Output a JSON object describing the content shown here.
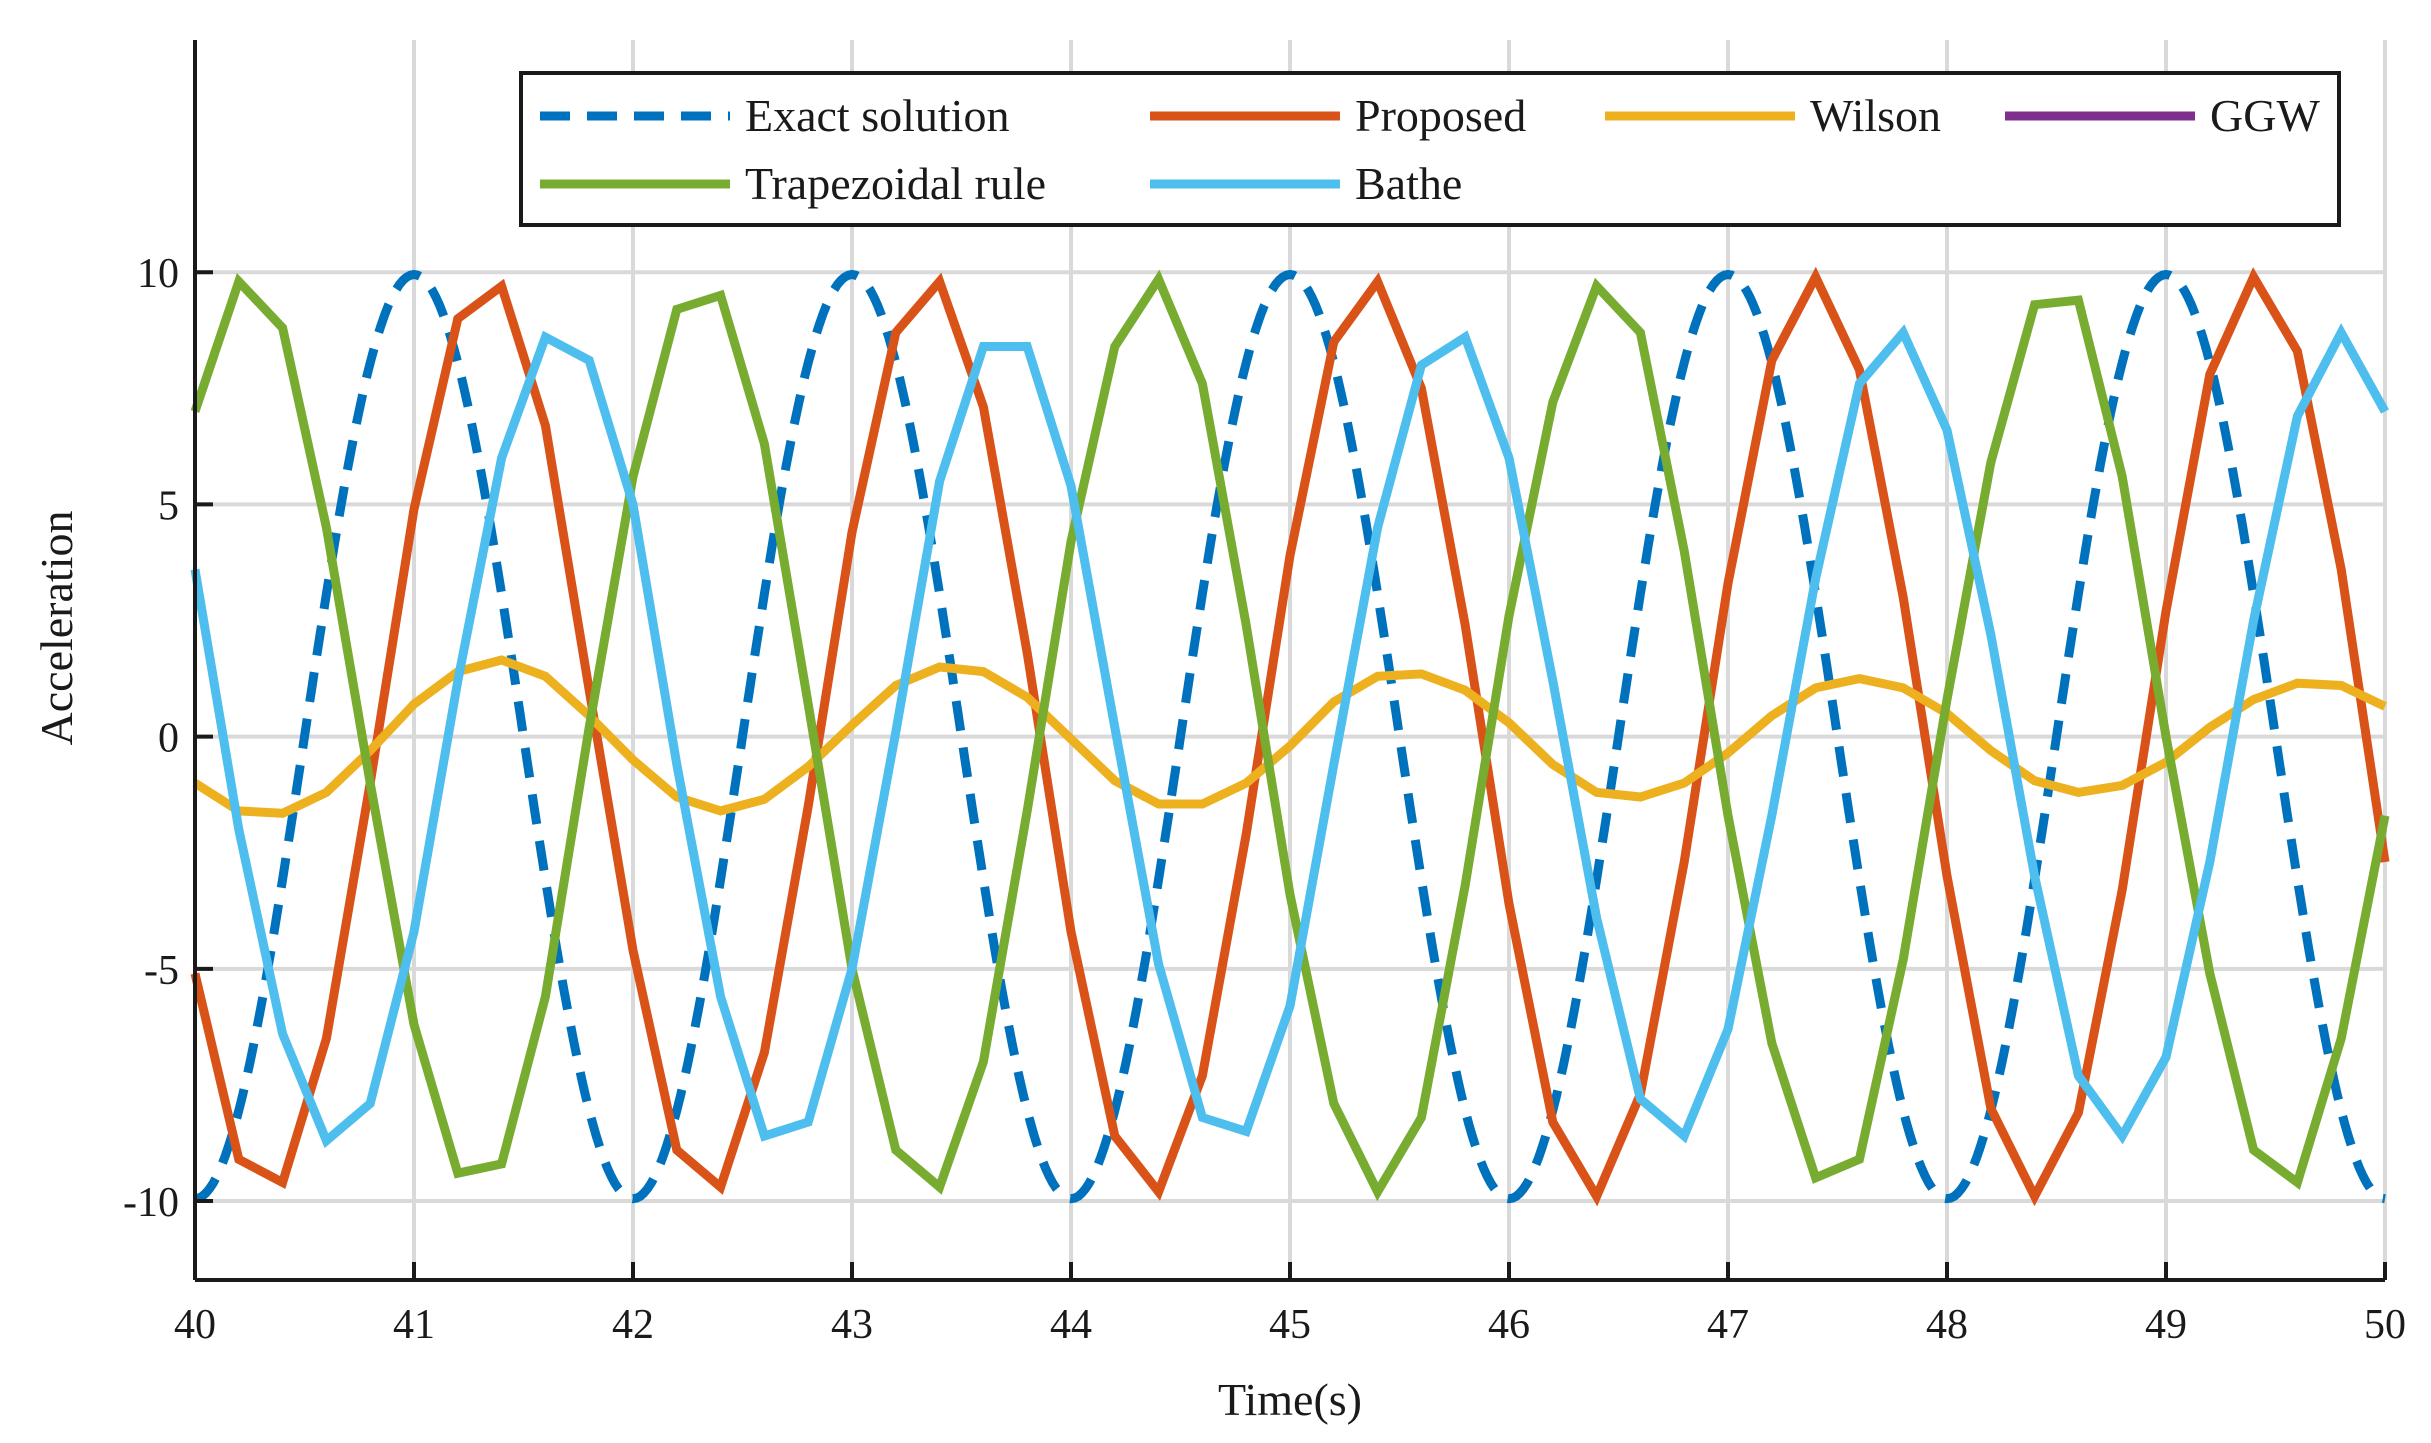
{
  "chart_data": {
    "type": "line",
    "title": "",
    "xlabel": "Time(s)",
    "ylabel": "Acceleration",
    "xlim": [
      40,
      50
    ],
    "ylim": [
      -11.7,
      15
    ],
    "grid": true,
    "legend_position": "top-right",
    "x_ticks": [
      40,
      41,
      42,
      43,
      44,
      45,
      46,
      47,
      48,
      49,
      50
    ],
    "x_tick_labels": [
      "40",
      "41",
      "42",
      "43",
      "44",
      "45",
      "46",
      "47",
      "48",
      "49",
      "50"
    ],
    "y_ticks": [
      -10,
      -5,
      0,
      5,
      10
    ],
    "y_tick_labels": [
      "-10",
      "-5",
      "0",
      "5",
      "10"
    ],
    "series": [
      {
        "name": "Exact solution",
        "style": "dashed",
        "color": "#0072BD",
        "model": {
          "amplitude": 9.95,
          "period": 2.0,
          "phase": -1.5708,
          "decay": 0
        }
      },
      {
        "name": "Proposed",
        "style": "solid",
        "color": "#D95319",
        "x": [
          40.0,
          40.2,
          40.4,
          40.6,
          40.8,
          41.0,
          41.2,
          41.4,
          41.6,
          41.8,
          42.0,
          42.2,
          42.4,
          42.6,
          42.8,
          43.0,
          43.2,
          43.4,
          43.6,
          43.8,
          44.0,
          44.2,
          44.4,
          44.6,
          44.8,
          45.0,
          45.2,
          45.4,
          45.6,
          45.8,
          46.0,
          46.2,
          46.4,
          46.6,
          46.8,
          47.0,
          47.2,
          47.4,
          47.6,
          47.8,
          48.0,
          48.2,
          48.4,
          48.6,
          48.8,
          49.0,
          49.2,
          49.4,
          49.6,
          49.8,
          50.0
        ],
        "values": [
          -5.1,
          -9.1,
          -9.6,
          -6.5,
          -1.0,
          4.9,
          9.0,
          9.7,
          6.7,
          1.0,
          -4.6,
          -8.9,
          -9.7,
          -6.8,
          -1.5,
          4.4,
          8.7,
          9.8,
          7.1,
          1.8,
          -4.2,
          -8.6,
          -9.8,
          -7.3,
          -2.1,
          3.9,
          8.5,
          9.8,
          7.5,
          2.4,
          -3.6,
          -8.3,
          -9.9,
          -7.7,
          -2.7,
          3.3,
          8.1,
          9.9,
          7.9,
          3.0,
          -3.0,
          -8.0,
          -9.9,
          -8.1,
          -3.3,
          2.7,
          7.8,
          9.9,
          8.3,
          3.6,
          -2.7
        ]
      },
      {
        "name": "Wilson",
        "style": "solid",
        "color": "#EDB120",
        "x": [
          40.0,
          40.2,
          40.4,
          40.6,
          40.8,
          41.0,
          41.2,
          41.4,
          41.6,
          41.8,
          42.0,
          42.2,
          42.4,
          42.6,
          42.8,
          43.0,
          43.2,
          43.4,
          43.6,
          43.8,
          44.0,
          44.2,
          44.4,
          44.6,
          44.8,
          45.0,
          45.2,
          45.4,
          45.6,
          45.8,
          46.0,
          46.2,
          46.4,
          46.6,
          46.8,
          47.0,
          47.2,
          47.4,
          47.6,
          47.8,
          48.0,
          48.2,
          48.4,
          48.6,
          48.8,
          49.0,
          49.2,
          49.4,
          49.6,
          49.8,
          50.0
        ],
        "values": [
          -1.0,
          -1.6,
          -1.65,
          -1.2,
          -0.3,
          0.7,
          1.4,
          1.65,
          1.3,
          0.45,
          -0.5,
          -1.3,
          -1.6,
          -1.35,
          -0.65,
          0.25,
          1.1,
          1.5,
          1.4,
          0.85,
          -0.05,
          -0.95,
          -1.45,
          -1.45,
          -1.0,
          -0.2,
          0.75,
          1.3,
          1.35,
          1.0,
          0.3,
          -0.6,
          -1.2,
          -1.3,
          -1.0,
          -0.35,
          0.45,
          1.05,
          1.25,
          1.05,
          0.5,
          -0.3,
          -0.95,
          -1.2,
          -1.05,
          -0.55,
          0.2,
          0.8,
          1.15,
          1.1,
          0.65
        ]
      },
      {
        "name": "GGW",
        "style": "solid",
        "color": "#7E2F8E",
        "x": [],
        "values": []
      },
      {
        "name": "Trapezoidal rule",
        "style": "solid",
        "color": "#77AC30",
        "x": [
          40.0,
          40.2,
          40.4,
          40.6,
          40.8,
          41.0,
          41.2,
          41.4,
          41.6,
          41.8,
          42.0,
          42.2,
          42.4,
          42.6,
          42.8,
          43.0,
          43.2,
          43.4,
          43.6,
          43.8,
          44.0,
          44.2,
          44.4,
          44.6,
          44.8,
          45.0,
          45.2,
          45.4,
          45.6,
          45.8,
          46.0,
          46.2,
          46.4,
          46.6,
          46.8,
          47.0,
          47.2,
          47.4,
          47.6,
          47.8,
          48.0,
          48.2,
          48.4,
          48.6,
          48.8,
          49.0,
          49.2,
          49.4,
          49.6,
          49.8,
          50.0
        ],
        "values": [
          7.0,
          9.8,
          8.8,
          4.5,
          -1.0,
          -6.2,
          -9.4,
          -9.2,
          -5.6,
          0.2,
          5.6,
          9.2,
          9.5,
          6.3,
          0.7,
          -5.0,
          -8.9,
          -9.7,
          -7.0,
          -1.6,
          4.2,
          8.4,
          9.85,
          7.6,
          2.4,
          -3.4,
          -7.9,
          -9.8,
          -8.2,
          -3.2,
          2.6,
          7.2,
          9.7,
          8.7,
          4.0,
          -1.7,
          -6.6,
          -9.5,
          -9.1,
          -4.8,
          0.8,
          5.9,
          9.3,
          9.4,
          5.6,
          0.0,
          -5.1,
          -8.9,
          -9.6,
          -6.5,
          -1.7
        ]
      },
      {
        "name": "Bathe",
        "style": "solid",
        "color": "#4DBEEE",
        "x": [
          40.0,
          40.2,
          40.4,
          40.6,
          40.8,
          41.0,
          41.2,
          41.4,
          41.6,
          41.8,
          42.0,
          42.2,
          42.4,
          42.6,
          42.8,
          43.0,
          43.2,
          43.4,
          43.6,
          43.8,
          44.0,
          44.2,
          44.4,
          44.6,
          44.8,
          45.0,
          45.2,
          45.4,
          45.6,
          45.8,
          46.0,
          46.2,
          46.4,
          46.6,
          46.8,
          47.0,
          47.2,
          47.4,
          47.6,
          47.8,
          48.0,
          48.2,
          48.4,
          48.6,
          48.8,
          49.0,
          49.2,
          49.4,
          49.6,
          49.8,
          50.0
        ],
        "values": [
          3.6,
          -2.0,
          -6.4,
          -8.7,
          -7.9,
          -4.2,
          1.2,
          6.0,
          8.6,
          8.1,
          5.0,
          -0.6,
          -5.6,
          -8.6,
          -8.3,
          -5.0,
          0.1,
          5.5,
          8.4,
          8.4,
          5.4,
          0.2,
          -4.9,
          -8.2,
          -8.5,
          -5.8,
          -0.6,
          4.5,
          8.0,
          8.6,
          6.0,
          1.2,
          -3.9,
          -7.8,
          -8.6,
          -6.3,
          -1.7,
          3.4,
          7.6,
          8.7,
          6.6,
          2.2,
          -3.0,
          -7.3,
          -8.6,
          -6.9,
          -2.7,
          2.5,
          6.9,
          8.7,
          7.0
        ]
      }
    ]
  }
}
